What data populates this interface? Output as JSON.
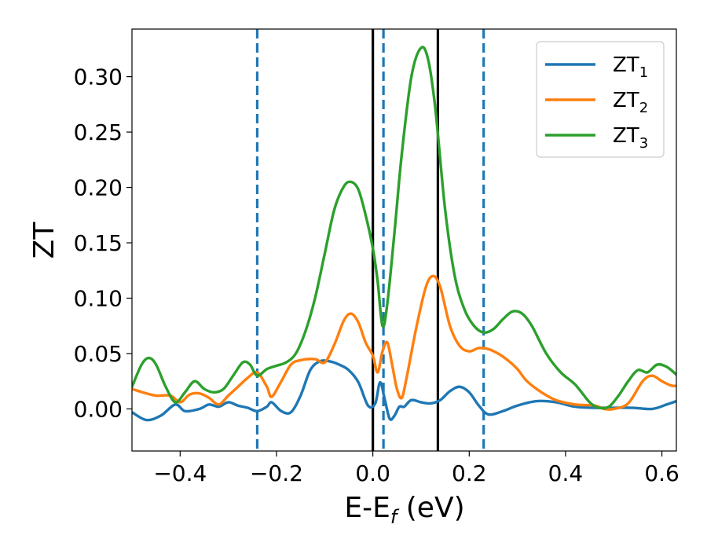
{
  "chart_data": {
    "type": "line",
    "xlabel": {
      "main": "E-E",
      "sub": "f",
      "unit": " (eV)"
    },
    "ylabel": "ZT",
    "xlim": [
      -0.5,
      0.63
    ],
    "ylim": [
      -0.038,
      0.343
    ],
    "x_ticks": [
      -0.4,
      -0.2,
      0.0,
      0.2,
      0.4,
      0.6
    ],
    "x_tick_labels": [
      "−0.4",
      "−0.2",
      "0.0",
      "0.2",
      "0.4",
      "0.6"
    ],
    "y_ticks": [
      0.0,
      0.05,
      0.1,
      0.15,
      0.2,
      0.25,
      0.3
    ],
    "y_tick_labels": [
      "0.00",
      "0.05",
      "0.10",
      "0.15",
      "0.20",
      "0.25",
      "0.30"
    ],
    "grid": false,
    "legend_position": "top-right",
    "colors": {
      "ZT1": "#1f77b4",
      "ZT2": "#ff7f0e",
      "ZT3": "#2ca02c",
      "solid_vline": "#000000",
      "dashed_vline": "#1f77b4"
    },
    "vlines": [
      {
        "x": 0.0,
        "style": "solid",
        "color": "#000000"
      },
      {
        "x": 0.135,
        "style": "solid",
        "color": "#000000"
      },
      {
        "x": -0.24,
        "style": "dashed",
        "color": "#1f77b4"
      },
      {
        "x": 0.022,
        "style": "dashed",
        "color": "#1f77b4"
      },
      {
        "x": 0.23,
        "style": "dashed",
        "color": "#1f77b4"
      }
    ],
    "series": [
      {
        "name": "ZT",
        "sub": "1",
        "color": "#1f77b4",
        "points": [
          [
            -0.5,
            -0.003
          ],
          [
            -0.47,
            -0.01
          ],
          [
            -0.44,
            -0.006
          ],
          [
            -0.41,
            0.004
          ],
          [
            -0.39,
            -0.002
          ],
          [
            -0.36,
            0.0
          ],
          [
            -0.34,
            0.004
          ],
          [
            -0.32,
            0.002
          ],
          [
            -0.3,
            0.006
          ],
          [
            -0.28,
            0.003
          ],
          [
            -0.26,
            0.001
          ],
          [
            -0.24,
            -0.002
          ],
          [
            -0.22,
            0.002
          ],
          [
            -0.21,
            0.006
          ],
          [
            -0.19,
            -0.002
          ],
          [
            -0.17,
            -0.003
          ],
          [
            -0.15,
            0.012
          ],
          [
            -0.13,
            0.035
          ],
          [
            -0.11,
            0.043
          ],
          [
            -0.09,
            0.043
          ],
          [
            -0.07,
            0.04
          ],
          [
            -0.05,
            0.035
          ],
          [
            -0.03,
            0.024
          ],
          [
            -0.01,
            0.003
          ],
          [
            0.005,
            0.005
          ],
          [
            0.015,
            0.024
          ],
          [
            0.025,
            0.008
          ],
          [
            0.035,
            -0.009
          ],
          [
            0.045,
            -0.006
          ],
          [
            0.055,
            0.002
          ],
          [
            0.065,
            0.002
          ],
          [
            0.08,
            0.008
          ],
          [
            0.1,
            0.006
          ],
          [
            0.12,
            0.005
          ],
          [
            0.14,
            0.008
          ],
          [
            0.16,
            0.016
          ],
          [
            0.18,
            0.02
          ],
          [
            0.2,
            0.015
          ],
          [
            0.22,
            0.003
          ],
          [
            0.24,
            -0.005
          ],
          [
            0.27,
            -0.002
          ],
          [
            0.3,
            0.003
          ],
          [
            0.34,
            0.007
          ],
          [
            0.38,
            0.006
          ],
          [
            0.42,
            0.002
          ],
          [
            0.46,
            0.001
          ],
          [
            0.5,
            0.001
          ],
          [
            0.54,
            0.001
          ],
          [
            0.58,
            0.0
          ],
          [
            0.61,
            0.004
          ],
          [
            0.63,
            0.007
          ]
        ]
      },
      {
        "name": "ZT",
        "sub": "2",
        "color": "#ff7f0e",
        "points": [
          [
            -0.5,
            0.018
          ],
          [
            -0.47,
            0.014
          ],
          [
            -0.45,
            0.012
          ],
          [
            -0.42,
            0.012
          ],
          [
            -0.4,
            0.006
          ],
          [
            -0.38,
            0.013
          ],
          [
            -0.36,
            0.014
          ],
          [
            -0.34,
            0.01
          ],
          [
            -0.32,
            0.004
          ],
          [
            -0.3,
            0.012
          ],
          [
            -0.28,
            0.02
          ],
          [
            -0.26,
            0.028
          ],
          [
            -0.24,
            0.033
          ],
          [
            -0.22,
            0.02
          ],
          [
            -0.21,
            0.011
          ],
          [
            -0.19,
            0.025
          ],
          [
            -0.17,
            0.04
          ],
          [
            -0.15,
            0.044
          ],
          [
            -0.12,
            0.045
          ],
          [
            -0.1,
            0.042
          ],
          [
            -0.08,
            0.058
          ],
          [
            -0.06,
            0.08
          ],
          [
            -0.045,
            0.086
          ],
          [
            -0.03,
            0.078
          ],
          [
            -0.015,
            0.06
          ],
          [
            0.0,
            0.048
          ],
          [
            0.01,
            0.033
          ],
          [
            0.02,
            0.052
          ],
          [
            0.03,
            0.06
          ],
          [
            0.04,
            0.04
          ],
          [
            0.05,
            0.018
          ],
          [
            0.06,
            0.01
          ],
          [
            0.07,
            0.028
          ],
          [
            0.09,
            0.073
          ],
          [
            0.11,
            0.11
          ],
          [
            0.125,
            0.12
          ],
          [
            0.14,
            0.11
          ],
          [
            0.16,
            0.075
          ],
          [
            0.18,
            0.057
          ],
          [
            0.2,
            0.052
          ],
          [
            0.22,
            0.055
          ],
          [
            0.24,
            0.054
          ],
          [
            0.26,
            0.05
          ],
          [
            0.28,
            0.044
          ],
          [
            0.3,
            0.036
          ],
          [
            0.32,
            0.025
          ],
          [
            0.35,
            0.015
          ],
          [
            0.38,
            0.008
          ],
          [
            0.42,
            0.004
          ],
          [
            0.46,
            0.003
          ],
          [
            0.48,
            0.0
          ],
          [
            0.5,
            0.0
          ],
          [
            0.53,
            0.005
          ],
          [
            0.56,
            0.025
          ],
          [
            0.58,
            0.03
          ],
          [
            0.6,
            0.025
          ],
          [
            0.62,
            0.021
          ],
          [
            0.63,
            0.021
          ]
        ]
      },
      {
        "name": "ZT",
        "sub": "3",
        "color": "#2ca02c",
        "points": [
          [
            -0.5,
            0.02
          ],
          [
            -0.48,
            0.04
          ],
          [
            -0.465,
            0.046
          ],
          [
            -0.45,
            0.04
          ],
          [
            -0.43,
            0.02
          ],
          [
            -0.41,
            0.006
          ],
          [
            -0.39,
            0.015
          ],
          [
            -0.37,
            0.025
          ],
          [
            -0.35,
            0.018
          ],
          [
            -0.33,
            0.015
          ],
          [
            -0.31,
            0.018
          ],
          [
            -0.29,
            0.03
          ],
          [
            -0.27,
            0.042
          ],
          [
            -0.255,
            0.04
          ],
          [
            -0.24,
            0.03
          ],
          [
            -0.22,
            0.036
          ],
          [
            -0.2,
            0.039
          ],
          [
            -0.18,
            0.042
          ],
          [
            -0.16,
            0.05
          ],
          [
            -0.14,
            0.07
          ],
          [
            -0.12,
            0.1
          ],
          [
            -0.1,
            0.14
          ],
          [
            -0.08,
            0.18
          ],
          [
            -0.06,
            0.201
          ],
          [
            -0.045,
            0.205
          ],
          [
            -0.03,
            0.198
          ],
          [
            -0.015,
            0.175
          ],
          [
            0.0,
            0.145
          ],
          [
            0.01,
            0.115
          ],
          [
            0.02,
            0.075
          ],
          [
            0.03,
            0.095
          ],
          [
            0.045,
            0.16
          ],
          [
            0.06,
            0.23
          ],
          [
            0.08,
            0.3
          ],
          [
            0.1,
            0.326
          ],
          [
            0.115,
            0.315
          ],
          [
            0.13,
            0.27
          ],
          [
            0.15,
            0.18
          ],
          [
            0.17,
            0.12
          ],
          [
            0.19,
            0.09
          ],
          [
            0.21,
            0.075
          ],
          [
            0.23,
            0.069
          ],
          [
            0.25,
            0.072
          ],
          [
            0.27,
            0.081
          ],
          [
            0.29,
            0.088
          ],
          [
            0.31,
            0.086
          ],
          [
            0.33,
            0.075
          ],
          [
            0.36,
            0.05
          ],
          [
            0.39,
            0.033
          ],
          [
            0.42,
            0.022
          ],
          [
            0.45,
            0.006
          ],
          [
            0.47,
            0.001
          ],
          [
            0.49,
            0.002
          ],
          [
            0.51,
            0.012
          ],
          [
            0.53,
            0.025
          ],
          [
            0.55,
            0.035
          ],
          [
            0.57,
            0.033
          ],
          [
            0.59,
            0.04
          ],
          [
            0.61,
            0.038
          ],
          [
            0.63,
            0.031
          ]
        ]
      }
    ]
  }
}
